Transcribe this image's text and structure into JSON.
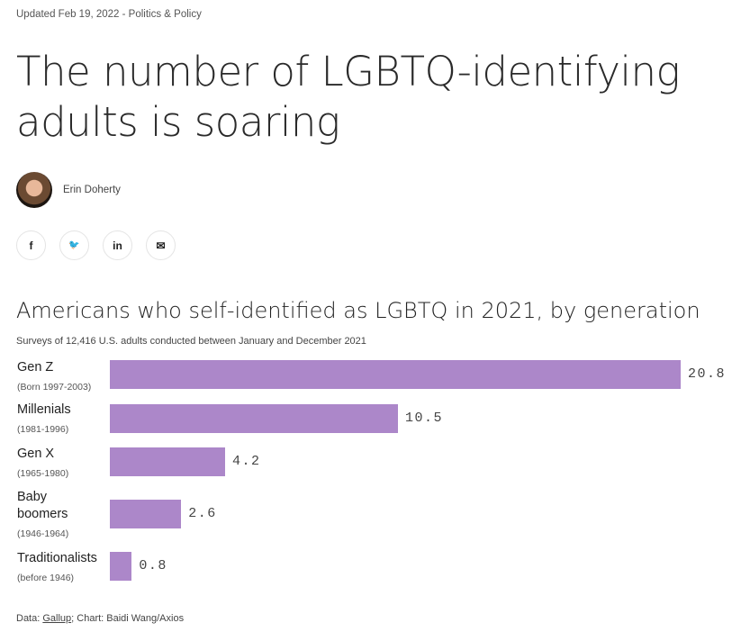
{
  "meta": "Updated Feb 19, 2022 - Politics & Policy",
  "title": "The number of LGBTQ-identifying adults is soaring",
  "author": "Erin Doherty",
  "share": [
    {
      "icon": "facebook-icon",
      "glyph": "f"
    },
    {
      "icon": "twitter-icon",
      "glyph": "🐦"
    },
    {
      "icon": "linkedin-icon",
      "glyph": "in"
    },
    {
      "icon": "email-icon",
      "glyph": "✉"
    }
  ],
  "source": {
    "prefix": "Data: ",
    "link": "Gallup",
    "suffix": "; Chart: Baidi Wang/Axios"
  },
  "chart_data": {
    "type": "bar",
    "orientation": "horizontal",
    "title": "Americans who self-identified as LGBTQ in 2021, by generation",
    "subtitle": "Surveys of 12,416 U.S. adults conducted between January and December 2021",
    "categories": [
      "Gen Z",
      "Millenials",
      "Gen X",
      "Baby boomers",
      "Traditionalists"
    ],
    "category_notes": [
      "(Born 1997-2003)",
      "(1981-1996)",
      "(1965-1980)",
      "(1946-1964)",
      "(before 1946)"
    ],
    "values": [
      20.8,
      10.5,
      4.2,
      2.6,
      0.8
    ],
    "value_labels": [
      "20.8",
      "10.5",
      "4.2",
      "2.6",
      "0.8"
    ],
    "color": "#ac87c9",
    "grid": false
  }
}
